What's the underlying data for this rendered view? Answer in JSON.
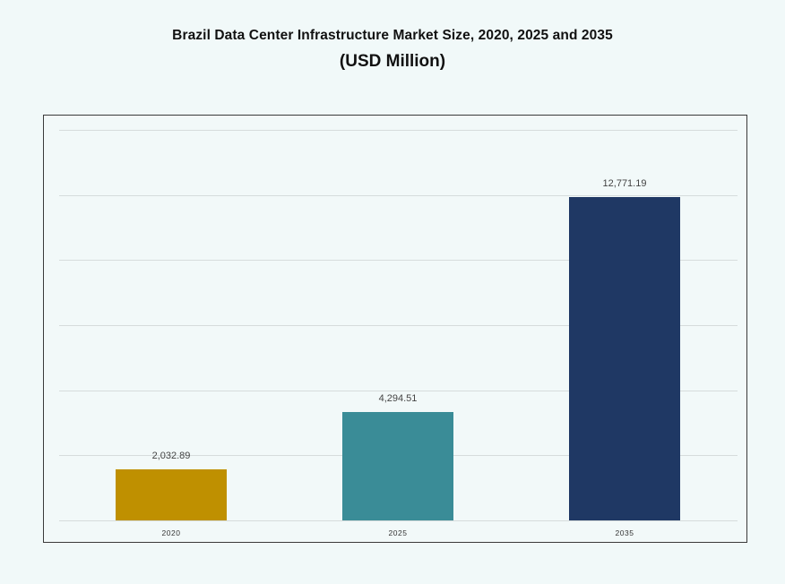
{
  "title": "Brazil Data Center Infrastructure Market Size, 2020, 2025 and 2035",
  "subtitle": "(USD Million)",
  "bars": [
    {
      "category": "2020",
      "value": 2032.89,
      "label": "2,032.89",
      "color": "#bf9000"
    },
    {
      "category": "2025",
      "value": 4294.51,
      "label": "4,294.51",
      "color": "#3a8c97"
    },
    {
      "category": "2035",
      "value": 12771.19,
      "label": "12,771.19",
      "color": "#1f3864"
    }
  ],
  "chart_data": {
    "type": "bar",
    "title": "Brazil Data Center Infrastructure Market Size, 2020, 2025 and 2035",
    "subtitle": "(USD Million)",
    "categories": [
      "2020",
      "2025",
      "2035"
    ],
    "values": [
      2032.89,
      4294.51,
      12771.19
    ],
    "data_labels": [
      "2,032.89",
      "4,294.51",
      "12,771.19"
    ],
    "colors": [
      "#bf9000",
      "#3a8c97",
      "#1f3864"
    ],
    "xlabel": "",
    "ylabel": "",
    "ylim": [
      0,
      15400
    ],
    "y_tick_labels_shown": false,
    "grid": true,
    "gridline_count": 7,
    "legend": "none"
  }
}
